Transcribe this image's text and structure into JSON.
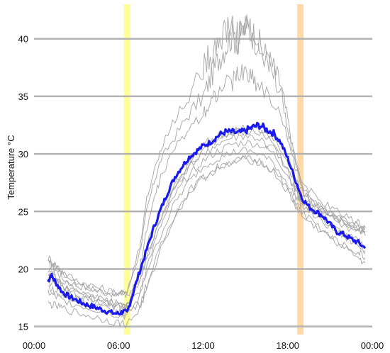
{
  "chart_data": {
    "type": "line",
    "ylabel": "Temperature °C",
    "xlabel": "",
    "x_unit": "hour of day",
    "xlim": [
      0,
      24
    ],
    "ylim": [
      14.3,
      43
    ],
    "x_ticks": [
      {
        "value": 0,
        "label": "00:00"
      },
      {
        "value": 6,
        "label": "06:00"
      },
      {
        "value": 12,
        "label": "12:00"
      },
      {
        "value": 18,
        "label": "18:00"
      },
      {
        "value": 24,
        "label": "00:00"
      }
    ],
    "y_ticks": [
      15,
      20,
      25,
      30,
      35,
      40
    ],
    "grid": "horizontal",
    "colors": {
      "grid": "#b3b3b3",
      "background_series": "#9e9e9e",
      "highlight_series": "#1a1aee",
      "sunrise_band": "#ffff99",
      "sunset_band": "#ffd9a6"
    },
    "vertical_bands": [
      {
        "name": "sunrise",
        "x": 6.6,
        "color": "#ffff99"
      },
      {
        "name": "sunset",
        "x": 18.9,
        "color": "#ffd9a6"
      }
    ],
    "highlight_series": {
      "x": [
        1.0,
        1.2,
        1.5,
        2.0,
        2.5,
        3.0,
        3.5,
        4.0,
        4.5,
        5.0,
        5.5,
        6.0,
        6.3,
        6.6,
        7.0,
        7.5,
        8.0,
        8.5,
        9.0,
        9.5,
        10.0,
        10.5,
        11.0,
        11.5,
        12.0,
        12.5,
        13.0,
        13.5,
        14.0,
        14.5,
        15.0,
        15.5,
        16.0,
        16.5,
        17.0,
        17.5,
        18.0,
        18.5,
        19.0,
        19.5,
        20.0,
        20.5,
        21.0,
        21.5,
        22.0,
        22.5,
        23.0,
        23.5
      ],
      "y": [
        18.9,
        19.5,
        18.9,
        18.0,
        17.6,
        17.3,
        17.0,
        16.8,
        16.6,
        16.4,
        16.2,
        16.1,
        16.3,
        16.2,
        17.8,
        19.8,
        21.7,
        23.6,
        25.2,
        26.7,
        28.0,
        28.9,
        29.7,
        30.2,
        30.7,
        31.0,
        31.5,
        31.9,
        31.9,
        31.8,
        32.0,
        32.3,
        32.5,
        32.1,
        31.8,
        31.0,
        29.6,
        27.9,
        26.2,
        25.4,
        25.0,
        24.6,
        23.9,
        23.2,
        23.0,
        22.6,
        22.3,
        21.8
      ]
    },
    "background_series": [
      {
        "x": [
          1.0,
          1.5,
          2.0,
          3.0,
          4.0,
          5.0,
          6.0,
          6.6,
          7.5,
          8.0,
          8.5,
          9.0,
          10.0,
          11.0,
          12.0,
          12.5,
          13.0,
          13.5,
          14.0,
          14.5,
          15.0,
          15.5,
          16.0,
          16.5,
          17.0,
          17.5,
          18.0,
          18.5,
          19.0,
          19.5,
          20.0,
          21.0,
          22.0,
          23.0,
          23.5
        ],
        "y": [
          20.5,
          20.0,
          19.2,
          18.6,
          18.3,
          18.0,
          17.8,
          18.0,
          21.5,
          25.0,
          27.5,
          29.5,
          31.5,
          33.5,
          35.0,
          36.5,
          38.0,
          39.2,
          40.3,
          39.8,
          41.0,
          40.5,
          39.5,
          38.5,
          37.5,
          36.0,
          33.0,
          29.5,
          27.0,
          26.0,
          25.6,
          24.8,
          24.0,
          23.6,
          23.3
        ]
      },
      {
        "x": [
          1.0,
          1.5,
          2.0,
          3.0,
          4.0,
          5.0,
          6.0,
          6.6,
          7.5,
          8.0,
          9.0,
          10.0,
          11.0,
          12.0,
          13.0,
          14.0,
          15.0,
          16.0,
          17.0,
          18.0,
          18.5,
          19.0,
          20.0,
          21.0,
          22.0,
          23.0,
          23.5
        ],
        "y": [
          21.0,
          20.4,
          19.8,
          19.0,
          18.6,
          18.2,
          17.9,
          17.8,
          19.0,
          21.0,
          24.5,
          27.0,
          29.2,
          30.8,
          31.6,
          32.0,
          32.2,
          31.8,
          31.0,
          28.5,
          27.0,
          26.0,
          25.2,
          24.5,
          24.0,
          23.5,
          23.2
        ]
      },
      {
        "x": [
          1.0,
          1.5,
          2.0,
          3.0,
          4.0,
          5.0,
          6.0,
          6.6,
          7.5,
          8.0,
          9.0,
          10.0,
          11.0,
          12.0,
          13.0,
          14.0,
          15.0,
          16.0,
          17.0,
          18.0,
          18.5,
          19.0,
          20.0,
          21.0,
          22.0,
          23.0,
          23.5
        ],
        "y": [
          19.5,
          19.0,
          18.4,
          17.8,
          17.4,
          17.0,
          16.8,
          16.7,
          18.0,
          19.8,
          23.0,
          25.8,
          27.6,
          28.9,
          29.6,
          30.1,
          30.3,
          30.0,
          29.2,
          27.4,
          26.4,
          25.6,
          24.5,
          23.6,
          22.8,
          22.0,
          21.6
        ]
      },
      {
        "x": [
          1.0,
          1.5,
          2.0,
          3.0,
          4.0,
          5.0,
          6.0,
          6.6,
          7.5,
          8.0,
          9.0,
          10.0,
          11.0,
          12.0,
          13.0,
          14.0,
          15.0,
          16.0,
          17.0,
          18.0,
          18.5,
          19.0,
          20.0,
          21.0,
          22.0,
          23.0,
          23.5
        ],
        "y": [
          18.5,
          18.0,
          17.6,
          17.2,
          16.9,
          16.6,
          16.3,
          16.2,
          17.0,
          18.6,
          22.0,
          24.8,
          26.8,
          28.0,
          28.8,
          29.3,
          29.6,
          29.4,
          28.6,
          26.9,
          25.9,
          25.0,
          23.8,
          22.8,
          21.8,
          21.0,
          20.5
        ]
      },
      {
        "x": [
          1.0,
          1.5,
          2.0,
          3.0,
          4.0,
          5.0,
          6.0,
          6.6,
          7.5,
          8.0,
          9.0,
          10.0,
          11.0,
          12.0,
          13.0,
          14.0,
          15.0,
          16.0,
          17.0,
          18.0,
          18.5,
          19.0,
          20.0,
          21.0,
          22.0,
          23.0,
          23.5
        ],
        "y": [
          17.0,
          16.8,
          16.6,
          16.2,
          15.9,
          15.6,
          15.3,
          15.2,
          16.5,
          18.2,
          21.8,
          24.6,
          26.6,
          27.9,
          28.7,
          29.2,
          29.5,
          29.3,
          28.4,
          26.7,
          25.6,
          24.6,
          23.6,
          22.8,
          22.0,
          21.4,
          21.0
        ]
      },
      {
        "x": [
          1.0,
          1.5,
          2.0,
          3.0,
          4.0,
          5.0,
          6.0,
          6.6,
          7.5,
          8.0,
          9.0,
          10.0,
          11.0,
          12.0,
          13.0,
          14.0,
          15.0,
          16.0,
          17.0,
          18.0,
          18.5,
          19.0,
          20.0,
          21.0,
          22.0,
          23.0,
          23.5
        ],
        "y": [
          20.0,
          19.4,
          18.9,
          18.2,
          17.7,
          17.3,
          17.0,
          16.9,
          19.5,
          22.0,
          25.2,
          27.4,
          29.0,
          30.3,
          31.2,
          31.8,
          32.1,
          32.0,
          31.4,
          29.4,
          28.0,
          26.8,
          25.6,
          24.8,
          24.2,
          23.8,
          23.6
        ]
      },
      {
        "x": [
          1.0,
          1.5,
          2.0,
          3.0,
          4.0,
          5.0,
          6.0,
          6.6,
          7.5,
          8.0,
          8.5,
          9.0,
          10.0,
          11.0,
          12.0,
          12.5,
          13.0,
          14.0,
          14.5,
          15.0,
          15.5,
          16.0,
          17.0,
          18.0,
          18.5,
          19.0,
          20.0,
          21.0,
          22.0,
          23.0,
          23.5
        ],
        "y": [
          19.0,
          18.6,
          18.1,
          17.6,
          17.2,
          16.9,
          16.7,
          16.6,
          20.0,
          23.5,
          26.0,
          28.0,
          30.5,
          32.2,
          33.6,
          34.5,
          35.4,
          36.2,
          36.8,
          37.2,
          36.6,
          36.0,
          34.5,
          31.5,
          29.0,
          27.3,
          25.8,
          24.9,
          24.2,
          23.6,
          23.4
        ]
      },
      {
        "x": [
          1.0,
          1.5,
          2.0,
          3.0,
          4.0,
          5.0,
          6.0,
          6.6,
          7.5,
          8.0,
          8.5,
          9.0,
          10.0,
          11.0,
          12.0,
          12.5,
          13.0,
          13.5,
          14.0,
          14.5,
          15.0,
          15.5,
          16.0,
          17.0,
          17.5,
          18.0,
          18.5,
          19.0,
          20.0,
          21.0,
          22.0,
          23.0,
          23.5
        ],
        "y": [
          20.8,
          20.2,
          19.6,
          18.9,
          18.4,
          18.1,
          17.9,
          17.7,
          22.0,
          26.0,
          28.5,
          30.5,
          33.0,
          35.2,
          37.5,
          38.6,
          39.8,
          40.5,
          41.2,
          40.0,
          41.6,
          40.2,
          39.0,
          37.0,
          35.5,
          32.0,
          29.8,
          27.6,
          26.2,
          25.3,
          24.7,
          24.0,
          23.7
        ]
      },
      {
        "x": [
          1.0,
          1.5,
          2.0,
          3.0,
          4.0,
          5.0,
          6.0,
          6.6,
          7.5,
          8.0,
          9.0,
          10.0,
          11.0,
          12.0,
          13.0,
          14.0,
          15.0,
          16.0,
          17.0,
          18.0,
          18.5,
          19.0,
          20.0,
          21.0,
          22.0,
          23.0,
          23.5
        ],
        "y": [
          18.0,
          17.6,
          17.3,
          16.9,
          16.6,
          16.3,
          16.0,
          15.9,
          17.6,
          20.2,
          23.8,
          26.4,
          28.2,
          29.4,
          30.2,
          30.8,
          31.0,
          30.8,
          30.0,
          28.2,
          27.0,
          26.0,
          24.8,
          23.8,
          23.0,
          22.4,
          22.0
        ]
      },
      {
        "x": [
          1.0,
          1.5,
          2.0,
          3.0,
          4.0,
          5.0,
          6.0,
          6.6,
          7.5,
          8.0,
          9.0,
          10.0,
          11.0,
          12.0,
          13.0,
          14.0,
          15.0,
          16.0,
          17.0,
          18.0,
          18.5,
          19.0,
          20.0,
          21.0,
          22.0,
          23.0,
          23.5
        ],
        "y": [
          19.8,
          19.2,
          18.6,
          18.0,
          17.6,
          17.2,
          16.9,
          16.8,
          18.8,
          21.0,
          24.4,
          27.0,
          28.8,
          30.0,
          30.8,
          31.3,
          31.5,
          31.2,
          30.4,
          28.6,
          27.4,
          26.4,
          25.2,
          24.4,
          23.8,
          23.2,
          22.9
        ]
      }
    ]
  }
}
